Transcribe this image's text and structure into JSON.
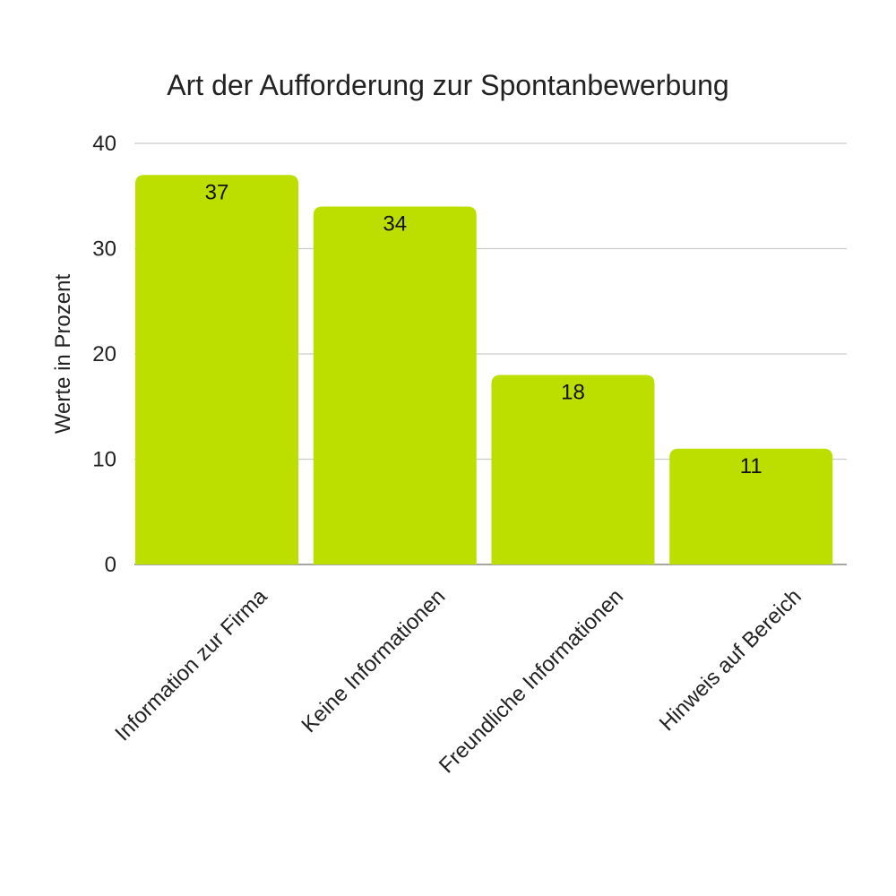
{
  "chart_data": {
    "type": "bar",
    "title": "Art der Aufforderung zur Spontanbewerbung",
    "xlabel": "",
    "ylabel": "Werte in Prozent",
    "categories": [
      "Information zur Firma",
      "Keine Informationen",
      "Freundliche Informationen",
      "Hinweis auf Bereich"
    ],
    "values": [
      37,
      34,
      18,
      11
    ],
    "data_labels": [
      "37",
      "34",
      "18",
      "11"
    ],
    "ylim": [
      0,
      40
    ],
    "yticks": [
      0,
      10,
      20,
      30,
      40
    ],
    "ytick_labels": [
      "0",
      "10",
      "20",
      "30",
      "40"
    ],
    "grid": true,
    "legend": "none",
    "colors": {
      "bar": "#bcdf00",
      "grid": "#cccccc",
      "baseline": "#888888",
      "text": "#222222"
    }
  }
}
